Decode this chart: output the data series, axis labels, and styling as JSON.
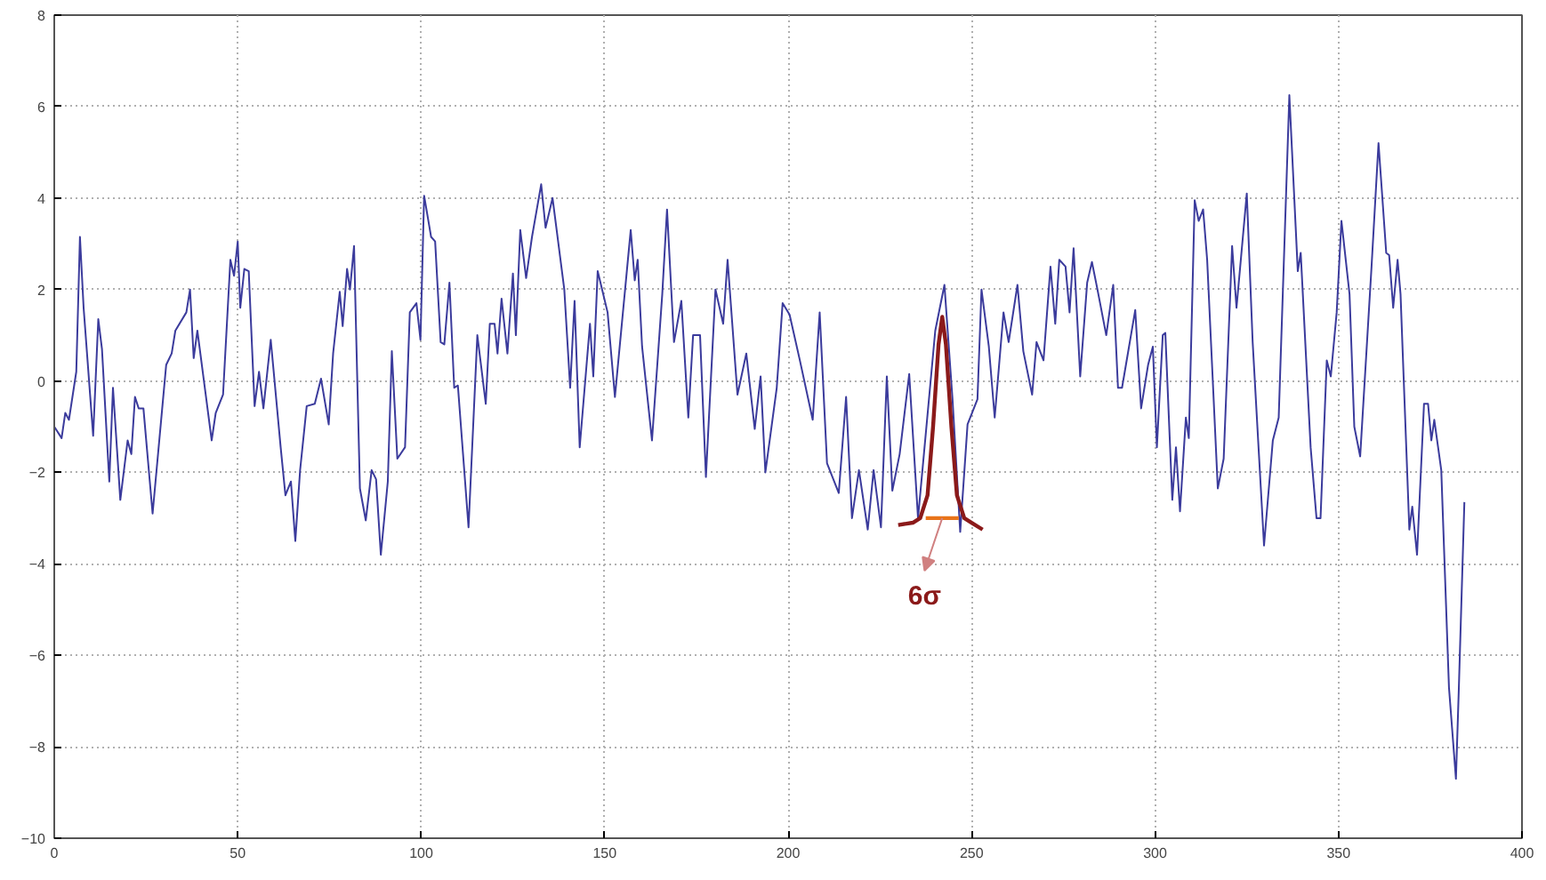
{
  "chart_data": {
    "type": "line",
    "xlim": [
      0,
      400
    ],
    "ylim": [
      -10,
      8
    ],
    "xticks": [
      0,
      50,
      100,
      150,
      200,
      250,
      300,
      350,
      400
    ],
    "yticks": [
      -10,
      -8,
      -6,
      -4,
      -2,
      0,
      2,
      4,
      6,
      8
    ],
    "grid": true,
    "marker": "none",
    "line_style": "solid",
    "annotations": [
      "6σ"
    ],
    "series": [
      {
        "color": "#3b3b9c",
        "x": [
          0,
          2,
          3,
          4,
          6,
          7,
          8,
          10.6,
          12,
          13,
          15,
          16,
          18,
          20,
          21,
          22,
          23,
          24.3,
          26.8,
          30.5,
          32,
          33,
          36,
          37,
          38,
          39,
          42.9,
          44,
          46,
          48,
          49,
          50,
          50.7,
          51.8,
          53,
          54.6,
          55.8,
          57,
          59,
          61.7,
          63,
          64.5,
          65.7,
          67,
          68.8,
          71,
          72.7,
          74.8,
          76,
          77.8,
          78.6,
          79.8,
          80.6,
          81.7,
          83.3,
          84.9,
          86.5,
          87.7,
          89,
          90.9,
          92,
          93.5,
          95.6,
          96.9,
          98.7,
          99.8,
          100.8,
          102.7,
          103.8,
          105.3,
          106.3,
          107.7,
          109,
          110,
          112.9,
          115.3,
          117.6,
          118.7,
          120,
          120.8,
          121.9,
          123.5,
          125,
          125.8,
          127,
          128.6,
          130.2,
          132.7,
          133.9,
          135.8,
          139,
          140.6,
          141.8,
          143.2,
          146,
          146.9,
          148.1,
          150.8,
          152.8,
          157.1,
          158.2,
          159,
          160.2,
          162.9,
          165.7,
          167,
          168.9,
          170.9,
          172.8,
          174.1,
          176,
          177.6,
          180.2,
          182.3,
          183.5,
          186.2,
          188.6,
          190.9,
          192.5,
          193.8,
          196.9,
          198.5,
          200.4,
          203.2,
          206.7,
          208.6,
          210.6,
          213.8,
          215.8,
          217.4,
          219.3,
          221.7,
          223.3,
          225.3,
          226.9,
          228.4,
          230.4,
          233,
          235.4,
          240.1,
          242.6,
          244.8,
          246.9,
          248.9,
          251.6,
          252.7,
          254.7,
          256.3,
          258.7,
          260.1,
          262.5,
          264.1,
          266.5,
          267.7,
          269.6,
          271.5,
          272.8,
          273.9,
          275.6,
          276.7,
          277.8,
          279.6,
          281.5,
          282.8,
          284.3,
          286.7,
          288.6,
          289.9,
          291,
          294.6,
          296.2,
          298.1,
          299.4,
          300.5,
          302.1,
          302.8,
          304.7,
          305.7,
          306.8,
          308.4,
          309.2,
          310.8,
          311.9,
          313.1,
          314.2,
          317.1,
          318.7,
          321,
          322.2,
          325,
          326.6,
          329.7,
          332.1,
          333.7,
          336.6,
          338.9,
          339.7,
          342.4,
          344,
          345.1,
          346.8,
          347.9,
          349.5,
          350.8,
          353,
          354.3,
          355.9,
          359,
          360.9,
          363,
          363.8,
          364.9,
          366.1,
          366.9,
          369.3,
          370.1,
          371.4,
          373.3,
          374.4,
          375.3,
          376.1,
          378,
          380.1,
          382,
          382.8,
          384.3
        ],
        "values": [
          -1.0,
          -1.25,
          -0.7,
          -0.85,
          0.2,
          3.15,
          1.6,
          -1.2,
          1.35,
          0.7,
          -2.2,
          -0.15,
          -2.6,
          -1.3,
          -1.6,
          -0.35,
          -0.6,
          -0.6,
          -2.9,
          0.35,
          0.6,
          1.1,
          1.5,
          2.0,
          0.5,
          1.1,
          -1.3,
          -0.7,
          -0.3,
          2.65,
          2.3,
          3.05,
          1.6,
          2.45,
          2.4,
          -0.55,
          0.2,
          -0.6,
          0.9,
          -1.45,
          -2.5,
          -2.2,
          -3.5,
          -1.95,
          -0.55,
          -0.5,
          0.05,
          -0.95,
          0.6,
          1.95,
          1.2,
          2.45,
          2.0,
          2.95,
          -2.35,
          -3.05,
          -1.95,
          -2.15,
          -3.8,
          -2.2,
          0.65,
          -1.7,
          -1.45,
          1.5,
          1.7,
          0.9,
          4.05,
          3.15,
          3.05,
          0.85,
          0.8,
          2.15,
          -0.15,
          -0.1,
          -3.2,
          1.0,
          -0.5,
          1.25,
          1.25,
          0.6,
          1.8,
          0.6,
          2.35,
          1.0,
          3.3,
          2.25,
          3.15,
          4.3,
          3.35,
          4.0,
          2.0,
          -0.15,
          1.75,
          -1.45,
          1.25,
          0.1,
          2.4,
          1.5,
          -0.35,
          3.3,
          2.2,
          2.65,
          0.75,
          -1.3,
          1.9,
          3.75,
          0.85,
          1.75,
          -0.8,
          1.0,
          1.0,
          -2.1,
          2.0,
          1.25,
          2.65,
          -0.3,
          0.6,
          -1.05,
          0.1,
          -2.0,
          -0.15,
          1.7,
          1.45,
          0.45,
          -0.85,
          1.5,
          -1.8,
          -2.45,
          -0.35,
          -3.0,
          -1.95,
          -3.25,
          -1.95,
          -3.2,
          0.1,
          -2.4,
          -1.6,
          0.15,
          -3.0,
          1.1,
          2.1,
          -0.4,
          -3.3,
          -0.95,
          -0.4,
          2.0,
          0.75,
          -0.8,
          1.5,
          0.85,
          2.1,
          0.65,
          -0.3,
          0.85,
          0.45,
          2.5,
          1.25,
          2.65,
          2.5,
          1.5,
          2.9,
          0.1,
          2.15,
          2.6,
          2.0,
          1.0,
          2.1,
          -0.15,
          -0.15,
          1.55,
          -0.6,
          0.35,
          0.75,
          -1.45,
          1.0,
          1.05,
          -2.6,
          -1.45,
          -2.85,
          -0.8,
          -1.25,
          3.95,
          3.5,
          3.75,
          2.65,
          -2.35,
          -1.7,
          2.95,
          1.6,
          4.1,
          0.85,
          -3.6,
          -1.3,
          -0.8,
          6.25,
          2.4,
          2.8,
          -1.45,
          -3.0,
          -3.0,
          0.45,
          0.1,
          1.5,
          3.5,
          1.9,
          -1.0,
          -1.65,
          2.5,
          5.2,
          2.8,
          2.75,
          1.6,
          2.65,
          1.9,
          -3.25,
          -2.75,
          -3.8,
          -0.5,
          -0.5,
          -1.3,
          -0.85,
          -1.95,
          -6.7,
          -8.7,
          -6.7,
          -2.65
        ]
      },
      {
        "color": "#8b1a1a",
        "x": [
          230,
          234,
          236,
          238,
          239.5,
          241,
          242,
          243,
          244.5,
          246,
          248,
          250,
          253
        ],
        "values": [
          -3.15,
          -3.1,
          -3.0,
          -2.5,
          -1.0,
          0.8,
          1.4,
          0.8,
          -1.0,
          -2.5,
          -3.0,
          -3.1,
          -3.25
        ]
      },
      {
        "color": "#e8741a",
        "x": [
          237.5,
          246.5
        ],
        "values": [
          -3.0,
          -3.0
        ]
      }
    ]
  }
}
